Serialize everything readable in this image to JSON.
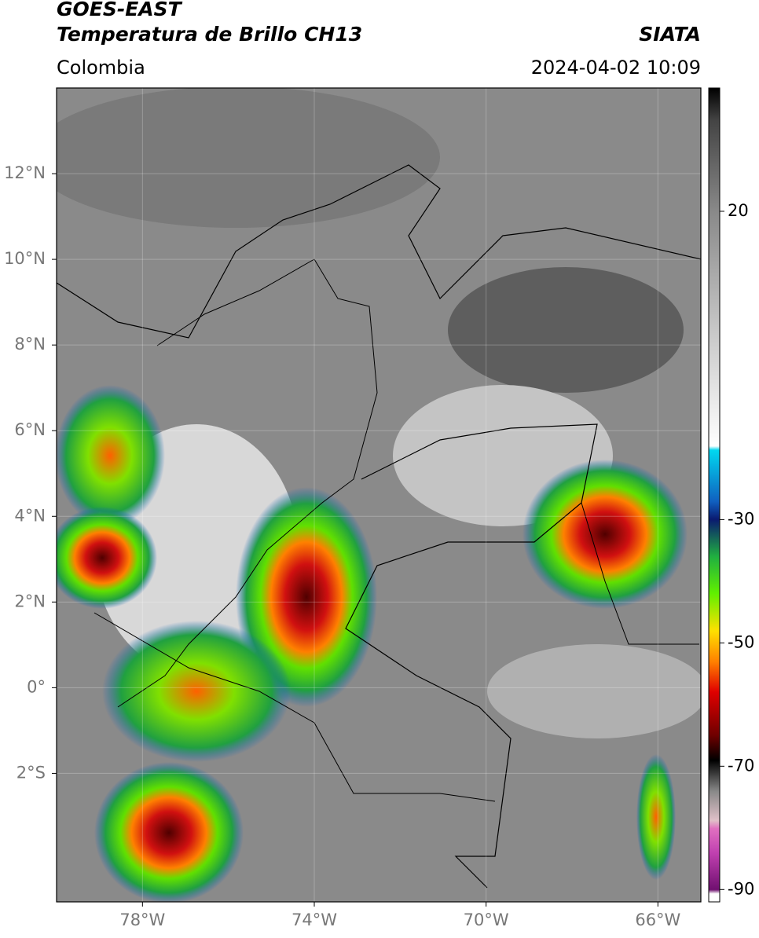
{
  "header": {
    "title": "GOES-EAST",
    "subtitle": "Temperatura de Brillo CH13",
    "source": "SIATA",
    "region": "Colombia",
    "timestamp": "2024-04-02 10:09"
  },
  "map": {
    "xlim": [
      -80,
      -65
    ],
    "ylim": [
      -5,
      14
    ],
    "xticks": [
      {
        "value": -78,
        "label": "78°W"
      },
      {
        "value": -74,
        "label": "74°W"
      },
      {
        "value": -70,
        "label": "70°W"
      },
      {
        "value": -66,
        "label": "66°W"
      }
    ],
    "yticks": [
      {
        "value": 12,
        "label": "12°N"
      },
      {
        "value": 10,
        "label": "10°N"
      },
      {
        "value": 8,
        "label": "8°N"
      },
      {
        "value": 6,
        "label": "6°N"
      },
      {
        "value": 4,
        "label": "4°N"
      },
      {
        "value": 2,
        "label": "2°N"
      },
      {
        "value": 0,
        "label": "0°"
      },
      {
        "value": -2,
        "label": "2°S"
      }
    ],
    "grid": true
  },
  "colorbar": {
    "lim": [
      -92,
      40
    ],
    "ticks": [
      20,
      -30,
      -50,
      -70,
      -90
    ]
  }
}
